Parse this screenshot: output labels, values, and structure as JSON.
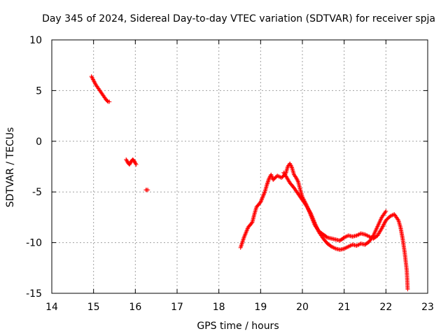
{
  "chart_data": {
    "type": "scatter",
    "title": "Day 345 of 2024, Sidereal Day-to-day VTEC variation (SDTVAR) for receiver spja",
    "xlabel": "GPS time / hours",
    "ylabel": "SDTVAR / TECUs",
    "xlim": [
      14,
      23
    ],
    "ylim": [
      -15,
      10
    ],
    "xticks": [
      14,
      15,
      16,
      17,
      18,
      19,
      20,
      21,
      22,
      23
    ],
    "yticks": [
      -15,
      -10,
      -5,
      0,
      5,
      10
    ],
    "grid": true,
    "marker": "plus",
    "color": "#ff0000",
    "series": [
      {
        "name": "segment-1",
        "x": [
          14.95,
          15.0,
          15.05,
          15.1,
          15.15,
          15.2,
          15.25,
          15.3,
          15.35,
          15.38
        ],
        "y": [
          6.4,
          6.0,
          5.6,
          5.3,
          5.0,
          4.7,
          4.4,
          4.1,
          3.9,
          3.9
        ]
      },
      {
        "name": "segment-2",
        "x": [
          15.78,
          15.82,
          15.86,
          15.9,
          15.94,
          15.98,
          16.02
        ],
        "y": [
          -1.8,
          -2.1,
          -2.3,
          -2.0,
          -1.8,
          -2.0,
          -2.3
        ]
      },
      {
        "name": "segment-3",
        "x": [
          16.25,
          16.3
        ],
        "y": [
          -4.8,
          -4.8
        ]
      },
      {
        "name": "segment-4",
        "x": [
          18.52,
          18.6,
          18.7,
          18.8,
          18.85,
          18.9,
          19.0,
          19.05,
          19.1,
          19.15,
          19.2,
          19.25,
          19.3,
          19.4,
          19.5,
          19.6,
          19.65,
          19.7,
          19.75,
          19.8,
          19.85,
          19.9,
          19.95,
          20.0,
          20.1,
          20.2,
          20.3,
          20.4,
          20.5,
          20.6,
          20.7,
          20.8,
          20.9,
          21.0,
          21.1,
          21.2,
          21.3,
          21.4,
          21.5,
          21.6,
          21.7,
          21.8,
          21.9,
          22.0,
          22.1,
          22.2,
          22.3,
          22.35,
          22.4,
          22.45,
          22.5,
          22.52
        ],
        "y": [
          -10.5,
          -9.5,
          -8.5,
          -8.0,
          -7.2,
          -6.5,
          -6.0,
          -5.5,
          -5.0,
          -4.3,
          -3.7,
          -3.3,
          -3.8,
          -3.4,
          -3.6,
          -3.2,
          -2.5,
          -2.2,
          -2.6,
          -3.3,
          -3.6,
          -4.0,
          -4.8,
          -5.5,
          -6.3,
          -7.3,
          -8.3,
          -8.9,
          -9.2,
          -9.5,
          -9.6,
          -9.7,
          -9.8,
          -9.5,
          -9.3,
          -9.4,
          -9.3,
          -9.1,
          -9.2,
          -9.4,
          -9.6,
          -9.3,
          -8.6,
          -7.8,
          -7.4,
          -7.2,
          -7.8,
          -8.5,
          -9.6,
          -11.0,
          -12.8,
          -14.6
        ]
      },
      {
        "name": "segment-5",
        "x": [
          19.55,
          19.6,
          19.7,
          19.8,
          19.9,
          20.0,
          20.1,
          20.2,
          20.3,
          20.4,
          20.5,
          20.6,
          20.7,
          20.8,
          20.9,
          21.0,
          21.1,
          21.2,
          21.3,
          21.4,
          21.5,
          21.6,
          21.7,
          21.8,
          21.9,
          22.0
        ],
        "y": [
          -3.1,
          -3.4,
          -4.1,
          -4.6,
          -5.2,
          -5.8,
          -6.4,
          -7.1,
          -8.1,
          -9.0,
          -9.6,
          -10.1,
          -10.4,
          -10.6,
          -10.7,
          -10.6,
          -10.4,
          -10.2,
          -10.3,
          -10.1,
          -10.2,
          -9.9,
          -9.3,
          -8.4,
          -7.5,
          -6.9
        ]
      }
    ]
  }
}
